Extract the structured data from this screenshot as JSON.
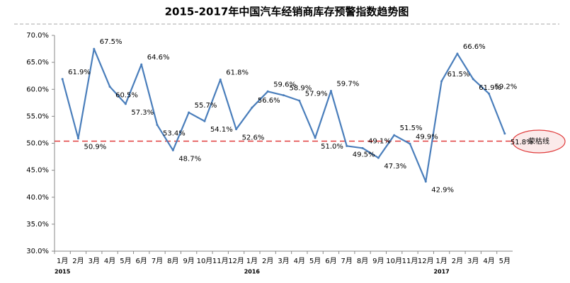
{
  "chart_data": {
    "type": "line",
    "title": "2015-2017年中国汽车经销商库存预警指数趋势图",
    "categories": [
      "1月",
      "2月",
      "3月",
      "4月",
      "5月",
      "6月",
      "7月",
      "8月",
      "9月",
      "10月",
      "11月",
      "12月",
      "1月",
      "2月",
      "3月",
      "4月",
      "5月",
      "6月",
      "7月",
      "8月",
      "9月",
      "10月",
      "11月",
      "12月",
      "1月",
      "2月",
      "3月",
      "4月",
      "5月"
    ],
    "category_years": [
      "2015",
      null,
      null,
      null,
      null,
      null,
      null,
      null,
      null,
      null,
      null,
      null,
      "2016",
      null,
      null,
      null,
      null,
      null,
      null,
      null,
      null,
      null,
      null,
      null,
      "2017",
      null,
      null,
      null,
      null
    ],
    "series": [
      {
        "color": "#4a7ebb",
        "values": [
          61.9,
          50.9,
          67.5,
          60.5,
          57.3,
          64.6,
          53.4,
          48.7,
          55.7,
          54.1,
          61.8,
          52.6,
          56.6,
          59.6,
          58.9,
          57.9,
          51.0,
          59.7,
          49.5,
          49.1,
          47.3,
          51.5,
          49.9,
          42.9,
          61.5,
          66.6,
          61.9,
          59.2,
          51.8
        ],
        "value_labels": [
          "61.9%",
          "50.9%",
          "67.5%",
          "60.5%",
          "57.3%",
          "64.6%",
          "53.4%",
          "48.7%",
          "55.7%",
          "54.1%",
          "61.8%",
          "52.6%",
          "56.6%",
          "59.6%",
          "58.9%",
          "57.9%",
          "51.0%",
          "59.7%",
          "49.5%",
          "49.1%",
          "47.3%",
          "51.5%",
          "49.9%",
          "42.9%",
          "61.5%",
          "66.6%",
          "61.9%",
          "59.2%",
          "51.8%"
        ]
      }
    ],
    "ylim": [
      30,
      70
    ],
    "yticks": [
      {
        "value": 30,
        "label": "30.0%"
      },
      {
        "value": 35,
        "label": "35.0%"
      },
      {
        "value": 40,
        "label": "40.0%"
      },
      {
        "value": 45,
        "label": "45.0%"
      },
      {
        "value": 50,
        "label": "50.0%"
      },
      {
        "value": 55,
        "label": "55.0%"
      },
      {
        "value": 60,
        "label": "60.0%"
      },
      {
        "value": 65,
        "label": "65.0%"
      },
      {
        "value": 70,
        "label": "70.0%"
      }
    ],
    "reference_line": {
      "value": 50.4,
      "label": "荣枯线",
      "color": "#e03c3c"
    }
  }
}
